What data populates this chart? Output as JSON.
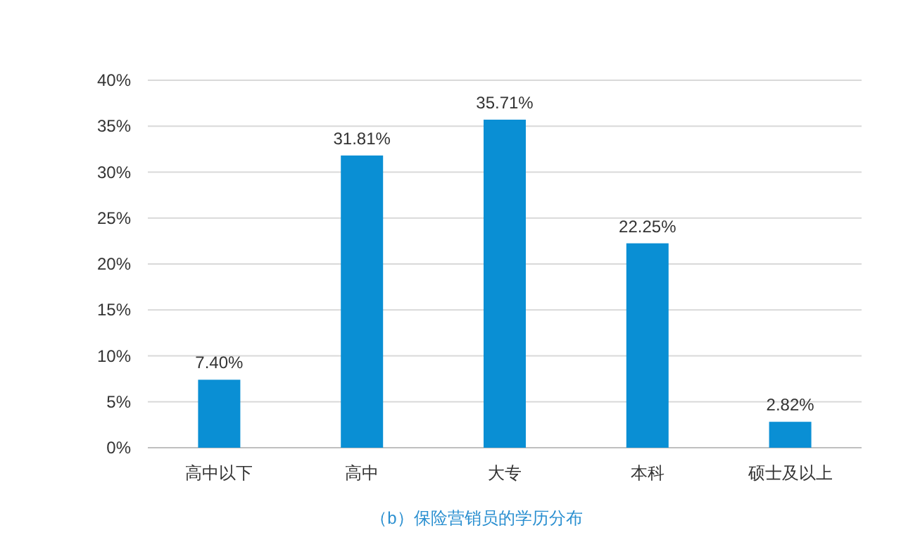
{
  "chart_data": {
    "type": "bar",
    "title": "（b）保险营销员的学历分布",
    "categories": [
      "高中以下",
      "高中",
      "大专",
      "本科",
      "硕士及以上"
    ],
    "values": [
      7.4,
      31.81,
      35.71,
      22.25,
      2.82
    ],
    "value_labels": [
      "7.40%",
      "31.81%",
      "35.71%",
      "22.25%",
      "2.82%"
    ],
    "color": "#0a8fd4",
    "ylim": [
      0,
      40
    ],
    "yticks": [
      {
        "value": 0,
        "label": "0%"
      },
      {
        "value": 5,
        "label": "5%"
      },
      {
        "value": 10,
        "label": "10%"
      },
      {
        "value": 15,
        "label": "15%"
      },
      {
        "value": 20,
        "label": "20%"
      },
      {
        "value": 25,
        "label": "25%"
      },
      {
        "value": 30,
        "label": "30%"
      },
      {
        "value": 35,
        "label": "35%"
      },
      {
        "value": 40,
        "label": "40%"
      }
    ],
    "grid": "y"
  }
}
